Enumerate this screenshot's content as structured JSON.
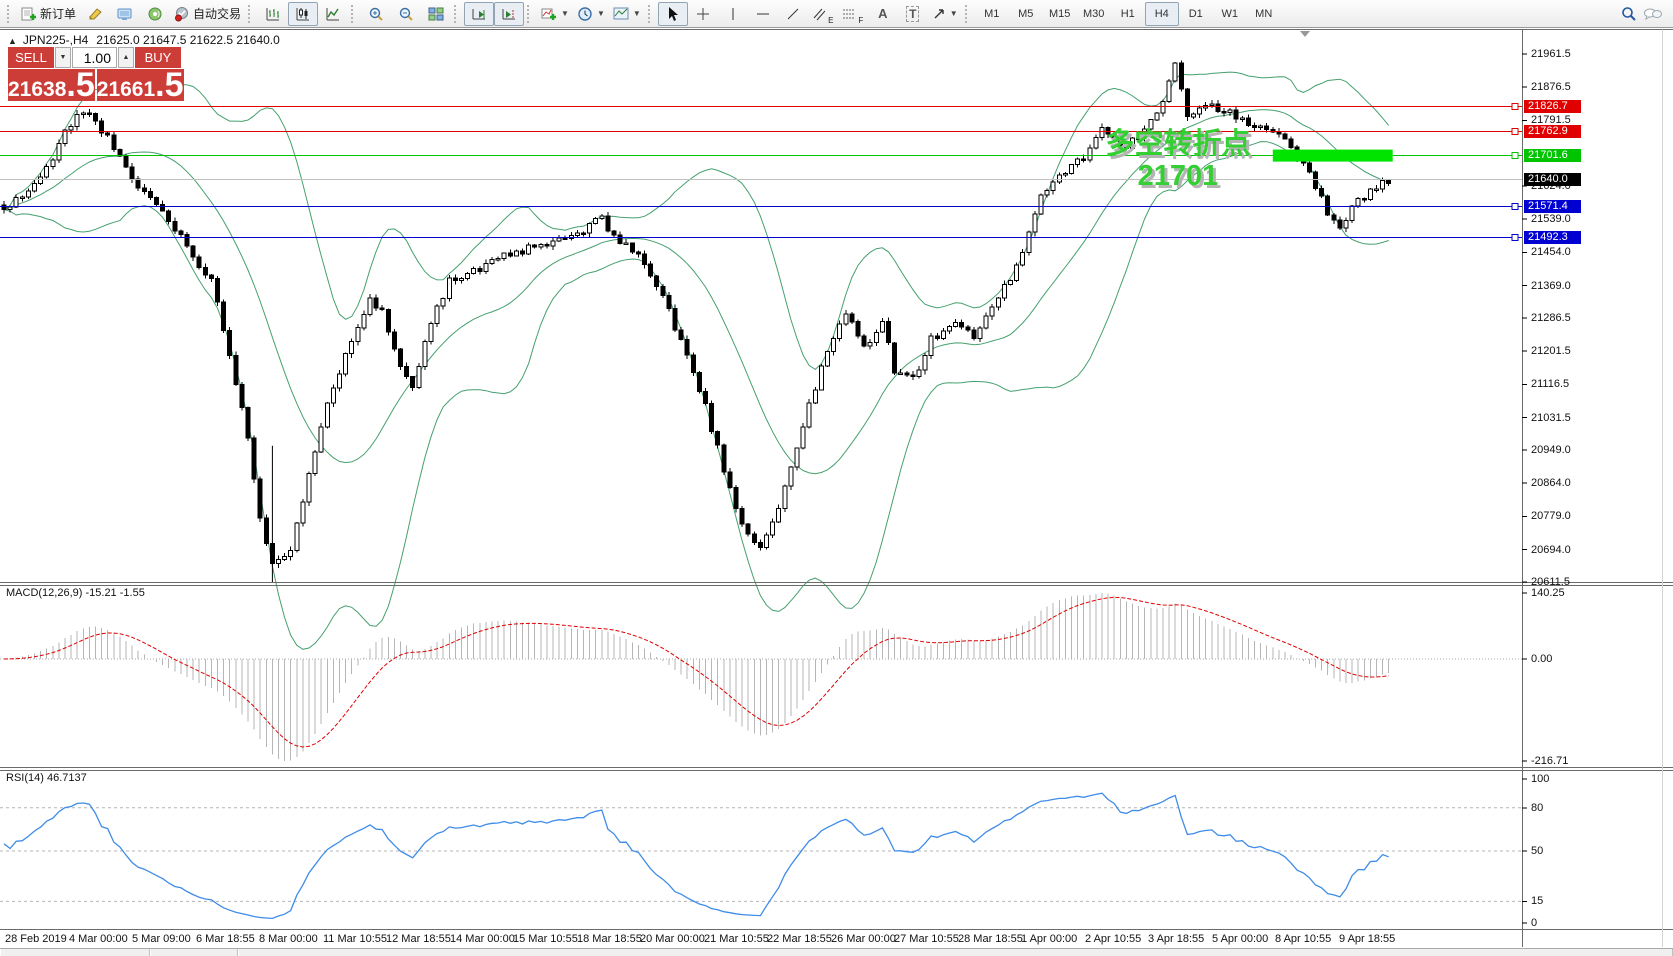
{
  "toolbar": {
    "new_order_label": "新订单",
    "autotrading_label": "自动交易",
    "glyphs": {
      "channel": "E",
      "fibo": "F",
      "text_tool": "A",
      "label_tool": "T"
    },
    "timeframes": [
      "M1",
      "M5",
      "M15",
      "M30",
      "H1",
      "H4",
      "D1",
      "W1",
      "MN"
    ],
    "active_timeframe": "H4"
  },
  "chart": {
    "title": "JPN225-,H4",
    "ohlc": "21625.0 21647.5 21622.5 21640.0"
  },
  "trade_panel": {
    "sell_label": "SELL",
    "buy_label": "BUY",
    "volume": "1.00",
    "sell_price_main": "21638",
    "sell_price_frac": ".5",
    "buy_price_main": "21661",
    "buy_price_frac": ".5"
  },
  "annotation": {
    "line1": "多空转折点",
    "line2": "21701"
  },
  "indicators": {
    "macd": {
      "label": "MACD(12,26,9)",
      "value_main": "-15.21",
      "value_signal": "-1.55"
    },
    "rsi": {
      "label": "RSI(14)",
      "value": "46.7137"
    }
  },
  "chart_data": [
    {
      "type": "candlestick",
      "symbol": "JPN225-",
      "timeframe": "H4",
      "open": "21625.0",
      "high": "21647.5",
      "low": "21622.5",
      "close": "21640.0",
      "y_axis": {
        "top_value": 21961.5,
        "bottom_value": 20611.5
      },
      "price_ticks": [
        "21961.5",
        "21876.5",
        "21791.5",
        "21624.0",
        "21539.0",
        "21454.0",
        "21369.0",
        "21286.5",
        "21201.5",
        "21116.5",
        "21031.5",
        "20949.0",
        "20864.0",
        "20779.0",
        "20694.0",
        "20611.5"
      ],
      "hlines": [
        {
          "price": 21826.7,
          "label": "21826.7",
          "color": "#e00000"
        },
        {
          "price": 21762.9,
          "label": "21762.9",
          "color": "#e00000"
        },
        {
          "price": 21701.6,
          "label": "21701.6",
          "color": "#00c400"
        },
        {
          "price": 21571.4,
          "label": "21571.4",
          "color": "#0000d0"
        },
        {
          "price": 21492.3,
          "label": "21492.3",
          "color": "#0000d0"
        }
      ],
      "current_price": {
        "price": 21640.0,
        "label": "21640.0",
        "line_color": "#c0c0c0",
        "badge_color": "#000000"
      },
      "bars_total": 228,
      "anchors": [
        [
          0,
          21560
        ],
        [
          3,
          21600
        ],
        [
          6,
          21640
        ],
        [
          10,
          21760
        ],
        [
          13,
          21820
        ],
        [
          16,
          21770
        ],
        [
          21,
          21640
        ],
        [
          26,
          21560
        ],
        [
          31,
          21450
        ],
        [
          34,
          21380
        ],
        [
          37,
          21200
        ],
        [
          40,
          20980
        ],
        [
          42,
          20780
        ],
        [
          44,
          20660
        ],
        [
          47,
          20700
        ],
        [
          50,
          20880
        ],
        [
          53,
          21060
        ],
        [
          56,
          21200
        ],
        [
          60,
          21340
        ],
        [
          62,
          21300
        ],
        [
          65,
          21160
        ],
        [
          67,
          21120
        ],
        [
          70,
          21280
        ],
        [
          73,
          21380
        ],
        [
          78,
          21410
        ],
        [
          83,
          21450
        ],
        [
          88,
          21470
        ],
        [
          94,
          21500
        ],
        [
          98,
          21540
        ],
        [
          101,
          21480
        ],
        [
          104,
          21450
        ],
        [
          108,
          21340
        ],
        [
          112,
          21190
        ],
        [
          115,
          21060
        ],
        [
          118,
          20900
        ],
        [
          121,
          20760
        ],
        [
          124,
          20700
        ],
        [
          127,
          20800
        ],
        [
          130,
          20960
        ],
        [
          133,
          21110
        ],
        [
          135,
          21200
        ],
        [
          138,
          21300
        ],
        [
          141,
          21210
        ],
        [
          144,
          21280
        ],
        [
          146,
          21150
        ],
        [
          149,
          21130
        ],
        [
          152,
          21230
        ],
        [
          156,
          21280
        ],
        [
          159,
          21230
        ],
        [
          162,
          21310
        ],
        [
          165,
          21390
        ],
        [
          167,
          21460
        ],
        [
          170,
          21600
        ],
        [
          173,
          21650
        ],
        [
          177,
          21700
        ],
        [
          180,
          21780
        ],
        [
          183,
          21720
        ],
        [
          187,
          21760
        ],
        [
          190,
          21840
        ],
        [
          192,
          21930
        ],
        [
          194,
          21810
        ],
        [
          198,
          21830
        ],
        [
          202,
          21800
        ],
        [
          205,
          21780
        ],
        [
          208,
          21770
        ],
        [
          211,
          21730
        ],
        [
          214,
          21650
        ],
        [
          217,
          21560
        ],
        [
          219,
          21520
        ],
        [
          222,
          21590
        ],
        [
          225,
          21620
        ],
        [
          227,
          21640
        ]
      ],
      "bollinger": {
        "period": 20,
        "deviation": 2,
        "color": "#46a06e"
      },
      "highlight_rect": {
        "from_bar": 208,
        "to_bar": 227,
        "price": 21701.6,
        "color": "#00e400"
      },
      "vertical_line": {
        "bar": 44,
        "price_top": 20960,
        "price_bottom": 20611.5
      },
      "candle_bull_fill": "#ffffff",
      "candle_bear_fill": "#000000"
    },
    {
      "type": "macd",
      "title": "MACD(12,26,9)",
      "ticks": [
        "140.25",
        "0.00",
        "-216.71"
      ],
      "axis_max": 140.25,
      "axis_min": -216.71,
      "histogram_color": "#b6b6b6",
      "signal_color": "#e00000"
    },
    {
      "type": "rsi",
      "title": "RSI(14)",
      "ticks": [
        "100",
        "80",
        "50",
        "15",
        "0"
      ],
      "levels": [
        80,
        50,
        15
      ],
      "line_color": "#3f8ce8"
    }
  ],
  "time_axis": {
    "labels": [
      "28 Feb 2019",
      "4 Mar 00:00",
      "5 Mar 09:00",
      "6 Mar 18:55",
      "8 Mar 00:00",
      "11 Mar 10:55",
      "12 Mar 18:55",
      "14 Mar 00:00",
      "15 Mar 10:55",
      "18 Mar 18:55",
      "20 Mar 00:00",
      "21 Mar 10:55",
      "22 Mar 18:55",
      "26 Mar 00:00",
      "27 Mar 10:55",
      "28 Mar 18:55",
      "1 Apr 00:00",
      "2 Apr 10:55",
      "3 Apr 18:55",
      "5 Apr 00:00",
      "8 Apr 10:55",
      "9 Apr 18:55"
    ]
  }
}
